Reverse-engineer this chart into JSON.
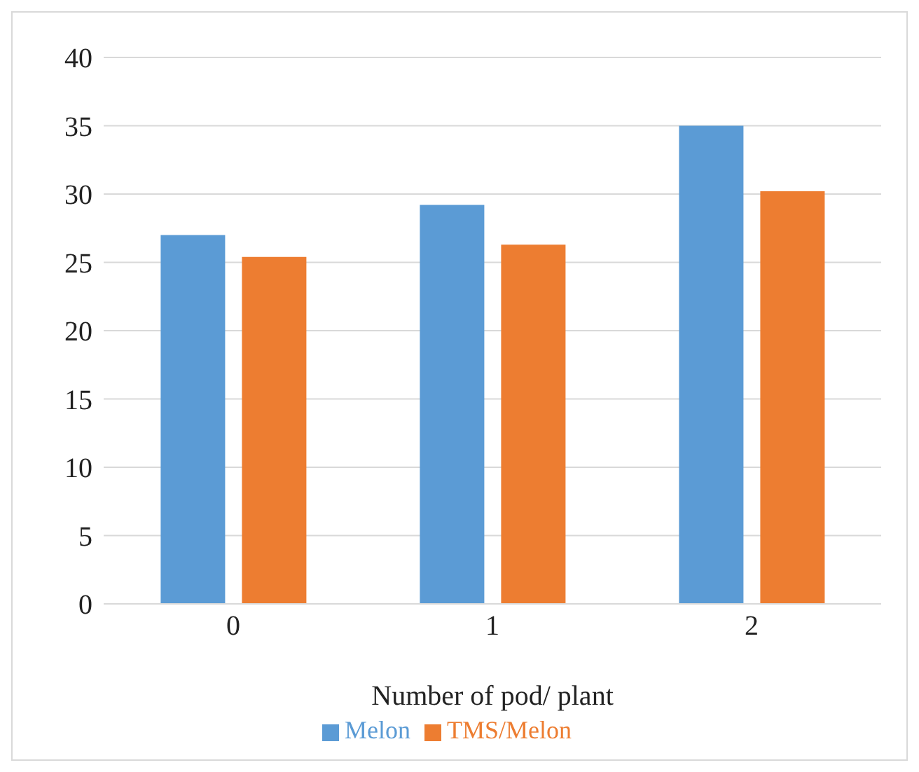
{
  "chart_data": {
    "type": "bar",
    "categories": [
      "0",
      "1",
      "2"
    ],
    "xlabel": "Number of pod/ plant",
    "series": [
      {
        "name": "Melon",
        "color": "#5b9bd5",
        "values": [
          27.0,
          29.2,
          35.0
        ]
      },
      {
        "name": "TMS/Melon",
        "color": "#ed7d31",
        "values": [
          25.4,
          26.3,
          30.2
        ]
      }
    ],
    "ylim": [
      0,
      40
    ],
    "yticks": [
      0,
      5,
      10,
      15,
      20,
      25,
      30,
      35,
      40
    ],
    "grid": "y",
    "legend": "bottom"
  }
}
